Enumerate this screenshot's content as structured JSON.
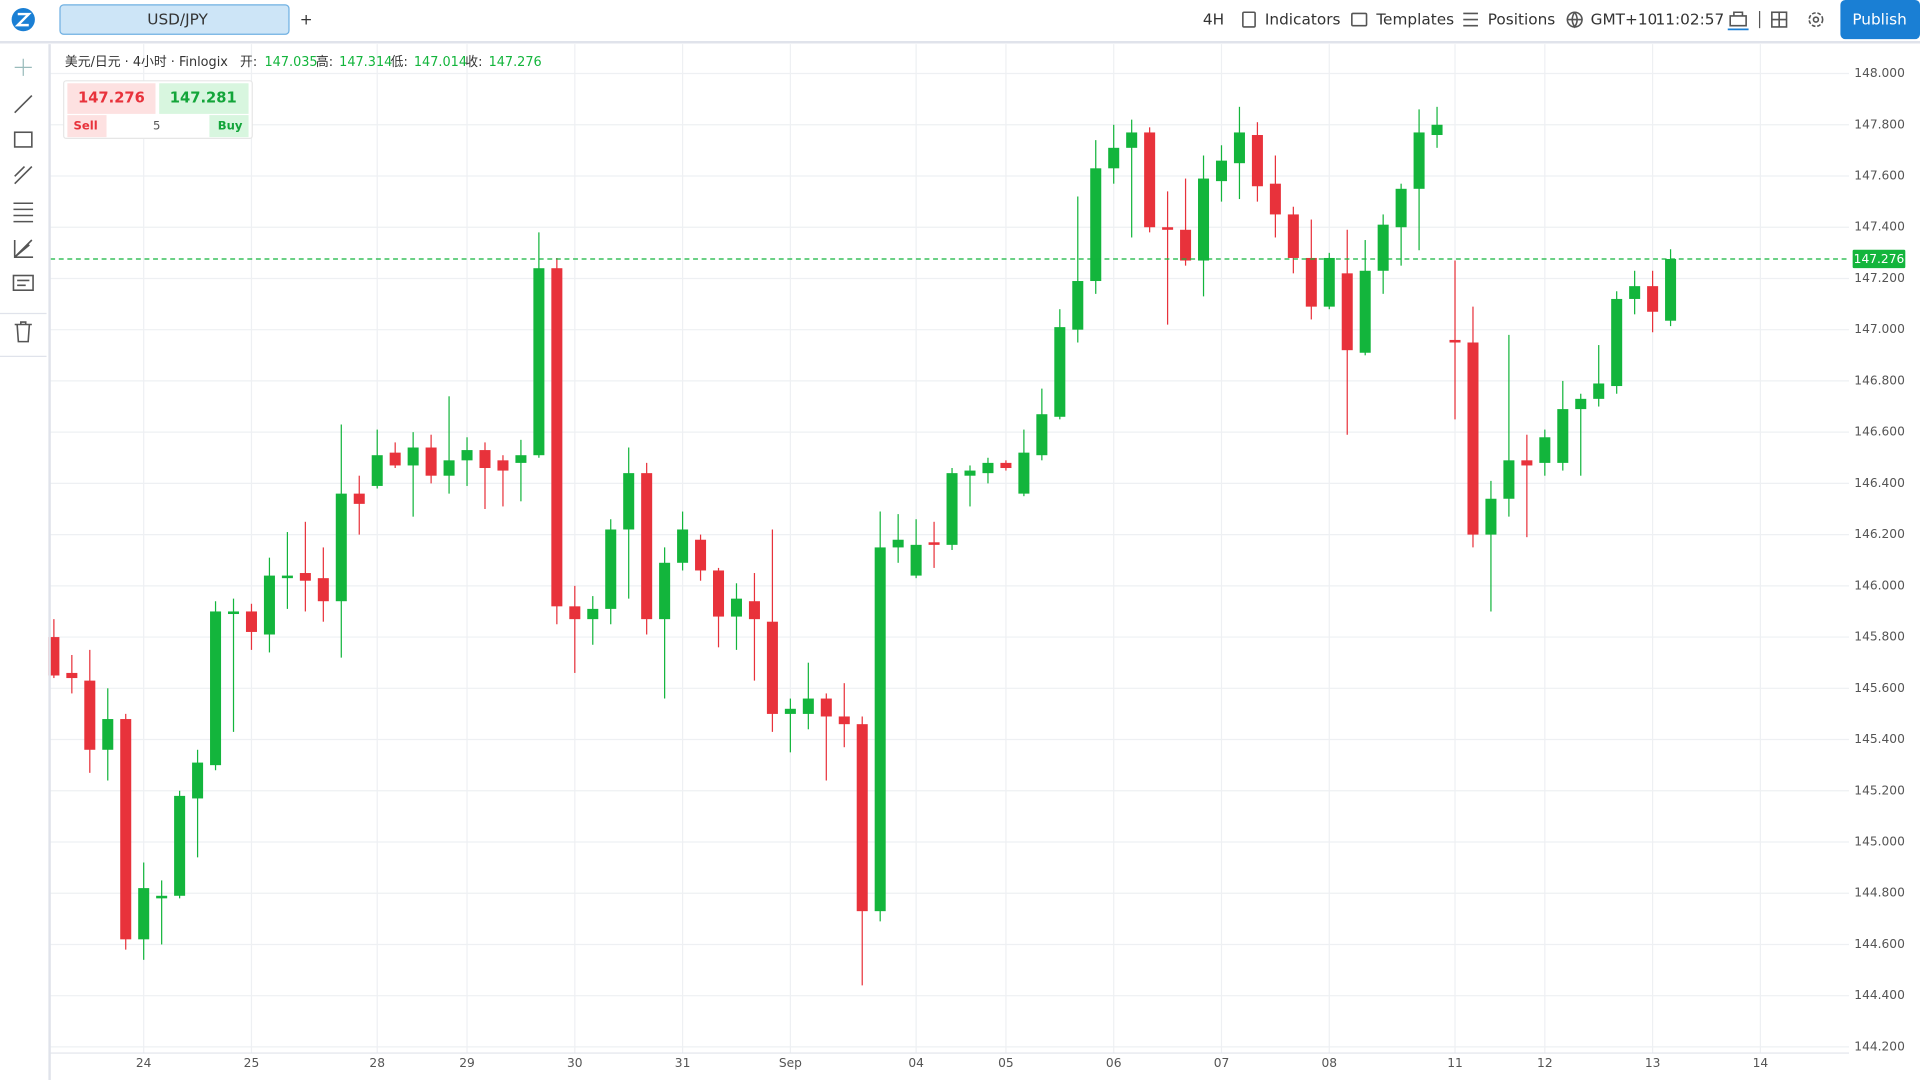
{
  "toolbar": {
    "symbol": "USD/JPY",
    "add_tab": "+",
    "interval": "4H",
    "indicators": "Indicators",
    "templates": "Templates",
    "positions": "Positions",
    "timezone": "GMT+10",
    "time": "11:02:57",
    "publish": "Publish"
  },
  "legend": {
    "title": "美元/日元 · 4小时 · Finlogix",
    "open_label": "开:",
    "high_label": "高:",
    "low_label": "低:",
    "close_label": "收:"
  },
  "trade_panel": {
    "sell_price": 147.276,
    "buy_price": 147.281,
    "sell_label": "Sell",
    "buy_label": "Buy",
    "quantity": 5
  },
  "chart_data": {
    "type": "candlestick",
    "categories": [
      null,
      null,
      null,
      null,
      null,
      "24",
      null,
      null,
      null,
      null,
      null,
      "25",
      null,
      null,
      null,
      null,
      null,
      null,
      "28",
      null,
      null,
      null,
      null,
      "29",
      null,
      null,
      null,
      null,
      null,
      "30",
      null,
      null,
      null,
      null,
      null,
      "31",
      null,
      null,
      null,
      null,
      null,
      "Sep",
      null,
      null,
      null,
      null,
      null,
      null,
      "04",
      null,
      null,
      null,
      null,
      "05",
      null,
      null,
      null,
      null,
      null,
      "06",
      null,
      null,
      null,
      null,
      null,
      "07",
      null,
      null,
      null,
      null,
      null,
      "08",
      null,
      null,
      null,
      null,
      null,
      null,
      "11",
      null,
      null,
      null,
      null,
      "12",
      null,
      null,
      null,
      null,
      null,
      "13",
      null,
      null,
      null,
      null,
      null,
      "14"
    ],
    "open": [
      145.8,
      145.66,
      145.63,
      145.36,
      145.48,
      144.62,
      144.78,
      144.79,
      145.17,
      145.3,
      145.89,
      145.9,
      145.81,
      146.03,
      146.05,
      146.03,
      145.94,
      146.36,
      146.39,
      146.52,
      146.47,
      146.54,
      146.43,
      146.49,
      146.53,
      146.49,
      146.48,
      146.51,
      147.24,
      145.92,
      145.87,
      145.91,
      146.22,
      146.44,
      145.87,
      146.09,
      146.18,
      146.06,
      145.88,
      145.94,
      145.86,
      145.5,
      145.5,
      145.56,
      145.49,
      145.46,
      144.73,
      146.15,
      146.04,
      146.17,
      146.16,
      146.43,
      146.44,
      146.48,
      146.36,
      146.51,
      146.66,
      147.0,
      147.19,
      147.63,
      147.71,
      147.77,
      147.4,
      147.39,
      147.27,
      147.58,
      147.65,
      147.76,
      147.57,
      147.45,
      147.28,
      147.09,
      147.22,
      146.91,
      147.23,
      147.4,
      147.55,
      147.76,
      146.96,
      146.95,
      146.2,
      146.34,
      146.49,
      146.48,
      146.48,
      146.69,
      146.73,
      146.78,
      147.12,
      147.17,
      147.035,
      null,
      null,
      null,
      null,
      null
    ],
    "high": [
      145.87,
      145.73,
      145.75,
      145.6,
      145.5,
      144.92,
      144.85,
      145.2,
      145.36,
      145.94,
      145.95,
      145.93,
      146.11,
      146.21,
      146.25,
      146.15,
      146.63,
      146.43,
      146.61,
      146.56,
      146.6,
      146.59,
      146.74,
      146.58,
      146.56,
      146.51,
      146.57,
      147.38,
      147.28,
      146.0,
      145.96,
      146.26,
      146.54,
      146.48,
      146.15,
      146.29,
      146.2,
      146.07,
      146.01,
      146.05,
      146.22,
      145.56,
      145.7,
      145.58,
      145.62,
      145.49,
      146.29,
      146.28,
      146.26,
      146.25,
      146.46,
      146.47,
      146.5,
      146.49,
      146.61,
      146.77,
      147.08,
      147.52,
      147.74,
      147.8,
      147.82,
      147.79,
      147.54,
      147.59,
      147.68,
      147.72,
      147.87,
      147.81,
      147.68,
      147.48,
      147.43,
      147.3,
      147.39,
      147.35,
      147.45,
      147.57,
      147.86,
      147.87,
      147.27,
      147.09,
      146.41,
      146.98,
      146.59,
      146.61,
      146.8,
      146.75,
      146.94,
      147.15,
      147.23,
      147.23,
      147.314,
      null,
      null,
      null,
      null,
      null
    ],
    "low": [
      145.64,
      145.58,
      145.27,
      145.24,
      144.58,
      144.54,
      144.6,
      144.78,
      144.94,
      145.28,
      145.43,
      145.75,
      145.74,
      145.91,
      145.9,
      145.86,
      145.72,
      146.2,
      146.38,
      146.46,
      146.27,
      146.4,
      146.36,
      146.39,
      146.3,
      146.31,
      146.33,
      146.5,
      145.85,
      145.66,
      145.77,
      145.85,
      145.95,
      145.81,
      145.56,
      146.06,
      146.02,
      145.76,
      145.75,
      145.63,
      145.43,
      145.35,
      145.44,
      145.24,
      145.37,
      144.44,
      144.69,
      146.09,
      146.03,
      146.07,
      146.14,
      146.31,
      146.4,
      146.45,
      146.35,
      146.49,
      146.65,
      146.95,
      147.14,
      147.57,
      147.36,
      147.38,
      147.02,
      147.25,
      147.13,
      147.5,
      147.51,
      147.5,
      147.36,
      147.22,
      147.04,
      147.08,
      146.59,
      146.9,
      147.14,
      147.25,
      147.31,
      147.71,
      146.65,
      146.15,
      145.9,
      146.27,
      146.19,
      146.43,
      146.45,
      146.43,
      146.7,
      146.75,
      147.06,
      146.99,
      147.014,
      null,
      null,
      null,
      null,
      null
    ],
    "close": [
      145.65,
      145.64,
      145.36,
      145.48,
      144.62,
      144.82,
      144.79,
      145.18,
      145.31,
      145.9,
      145.9,
      145.82,
      146.04,
      146.04,
      146.02,
      145.94,
      146.36,
      146.32,
      146.51,
      146.47,
      146.54,
      146.43,
      146.49,
      146.53,
      146.46,
      146.45,
      146.51,
      147.24,
      145.92,
      145.87,
      145.91,
      146.22,
      146.44,
      145.87,
      146.09,
      146.22,
      146.06,
      145.88,
      145.95,
      145.87,
      145.5,
      145.52,
      145.56,
      145.49,
      145.46,
      144.73,
      146.15,
      146.18,
      146.16,
      146.16,
      146.44,
      146.45,
      146.48,
      146.46,
      146.52,
      146.67,
      147.01,
      147.19,
      147.63,
      147.71,
      147.77,
      147.4,
      147.39,
      147.27,
      147.59,
      147.66,
      147.77,
      147.56,
      147.45,
      147.28,
      147.09,
      147.28,
      146.92,
      147.23,
      147.41,
      147.55,
      147.77,
      147.8,
      146.95,
      146.2,
      146.34,
      146.49,
      146.47,
      146.58,
      146.69,
      146.73,
      146.79,
      147.12,
      147.17,
      147.07,
      147.276,
      null,
      null,
      null,
      null,
      null
    ],
    "up_color": "#13b53c",
    "down_color": "#e8323b",
    "price_line": 147.276,
    "ylim": [
      144.176,
      148.115
    ],
    "yticks": [
      {
        "value": 144.2,
        "label": "144.200"
      },
      {
        "value": 144.4,
        "label": "144.400"
      },
      {
        "value": 144.6,
        "label": "144.600"
      },
      {
        "value": 144.8,
        "label": "144.800"
      },
      {
        "value": 145.0,
        "label": "145.000"
      },
      {
        "value": 145.2,
        "label": "145.200"
      },
      {
        "value": 145.4,
        "label": "145.400"
      },
      {
        "value": 145.6,
        "label": "145.600"
      },
      {
        "value": 145.8,
        "label": "145.800"
      },
      {
        "value": 146.0,
        "label": "146.000"
      },
      {
        "value": 146.2,
        "label": "146.200"
      },
      {
        "value": 146.4,
        "label": "146.400"
      },
      {
        "value": 146.6,
        "label": "146.600"
      },
      {
        "value": 146.8,
        "label": "146.800"
      },
      {
        "value": 147.0,
        "label": "147.000"
      },
      {
        "value": 147.2,
        "label": "147.200"
      },
      {
        "value": 147.4,
        "label": "147.400"
      },
      {
        "value": 147.6,
        "label": "147.600"
      },
      {
        "value": 147.8,
        "label": "147.800"
      },
      {
        "value": 148.0,
        "label": "148.000"
      }
    ],
    "grid": true
  }
}
